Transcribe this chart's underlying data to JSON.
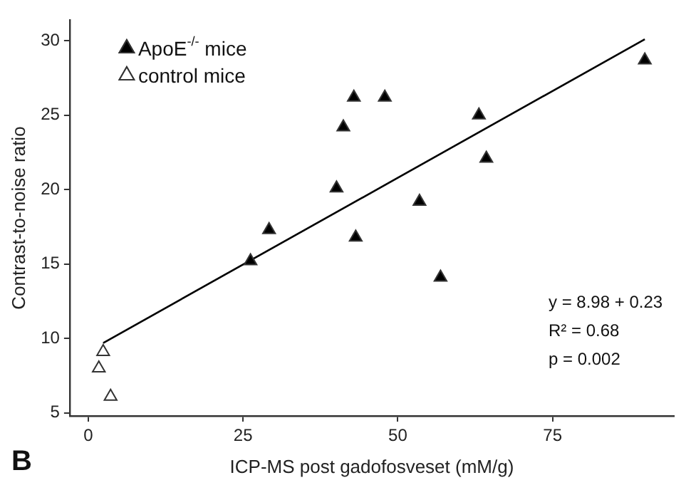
{
  "chart_data": {
    "type": "scatter",
    "xlabel": "ICP-MS post gadofosveset (mM/g)",
    "ylabel": "Contrast-to-noise ratio",
    "xlim": [
      -3,
      94.6
    ],
    "xticks": [
      0,
      25,
      50,
      75
    ],
    "ylim": [
      4.8,
      31.4
    ],
    "yticks": [
      5,
      10,
      15,
      20,
      25,
      30
    ],
    "grid": false,
    "legend": "top left",
    "marker": "triangle",
    "annotations": [
      "B",
      "y = 8.98 + 0.23",
      "R² = 0.68",
      "p = 0.002"
    ],
    "series": [
      {
        "name": "ApoE$^{-/-}$ mice",
        "color": "#000000",
        "x": [
          26.2,
          29.2,
          40.1,
          41.2,
          42.9,
          43.2,
          47.9,
          53.5,
          56.9,
          63.1,
          64.3,
          89.9
        ],
        "values": [
          15.2,
          17.3,
          20.1,
          24.2,
          26.2,
          16.8,
          26.2,
          19.2,
          14.1,
          25.0,
          22.1,
          28.7
        ]
      },
      {
        "name": "control mice",
        "color": "#ffffff",
        "x": [
          2.4,
          1.7,
          3.6
        ],
        "values": [
          9.1,
          8.0,
          6.1
        ]
      },
      {
        "type": "line",
        "color": "#000000",
        "marker": "none",
        "x": [
          2.4,
          89.9
        ],
        "values": [
          9.7,
          30.1
        ]
      }
    ]
  }
}
